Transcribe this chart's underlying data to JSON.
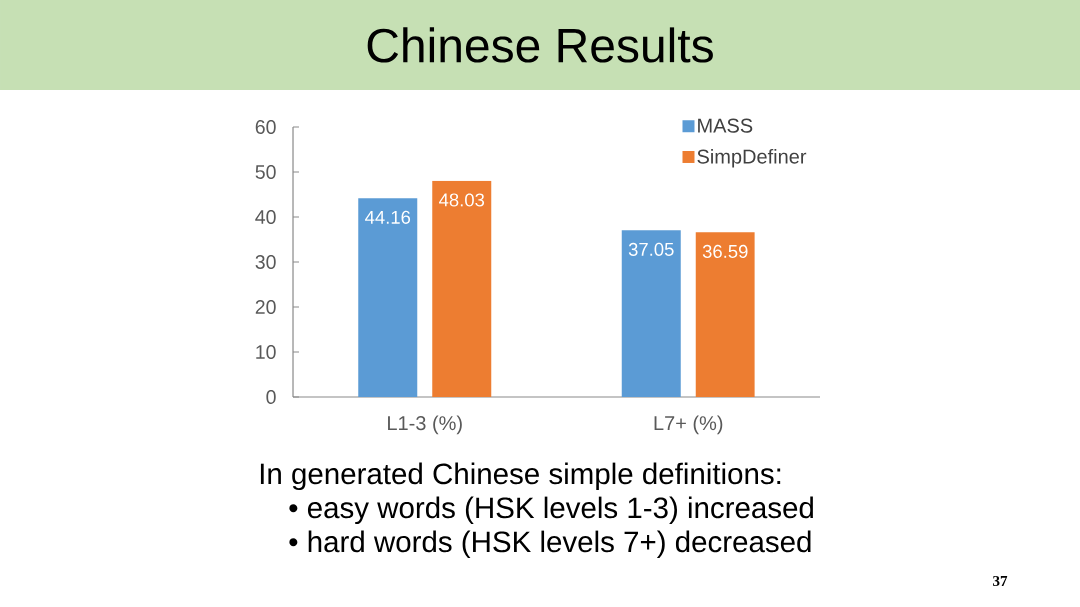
{
  "chart_data": {
    "type": "bar",
    "title": "Chinese Results",
    "categories": [
      "L1-3 (%)",
      "L7+ (%)"
    ],
    "series": [
      {
        "name": "MASS",
        "color": "#5b9bd5",
        "values": [
          44.16,
          37.05
        ]
      },
      {
        "name": "SimpDefiner",
        "color": "#ed7d31",
        "values": [
          48.03,
          36.59
        ]
      }
    ],
    "ylim": [
      0,
      60
    ],
    "yticks": [
      0,
      10,
      20,
      30,
      40,
      50,
      60
    ],
    "data_labels": true,
    "legend": "top right",
    "annotations": [
      "In generated Chinese simple definitions:",
      "• easy words (HSK levels 1-3) increased",
      "• hard words (HSK levels 7+) decreased",
      "37"
    ]
  }
}
